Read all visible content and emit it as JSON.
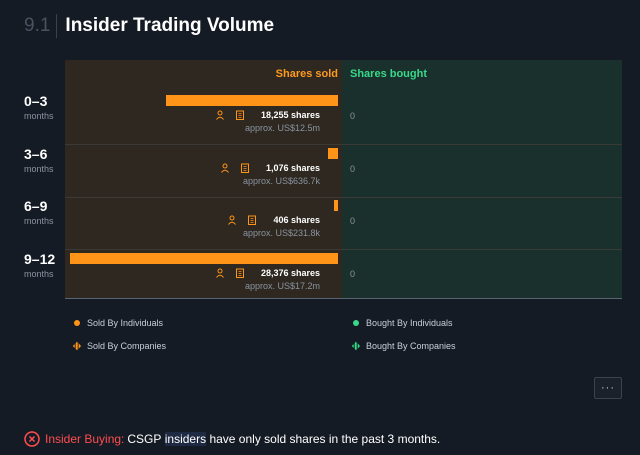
{
  "section": {
    "number": "9.1",
    "title": "Insider Trading Volume"
  },
  "columns": {
    "sold": "Shares sold",
    "bought": "Shares bought"
  },
  "colors": {
    "sold": "#ff9419",
    "bought": "#38d98a",
    "alert": "#ff4d4f"
  },
  "chart_data": {
    "type": "bar",
    "categories": [
      "0–3 months",
      "3–6 months",
      "6–9 months",
      "9–12 months"
    ],
    "series": [
      {
        "name": "Shares sold",
        "values": [
          18255,
          1076,
          406,
          28376
        ]
      },
      {
        "name": "Shares bought",
        "values": [
          0,
          0,
          0,
          0
        ]
      }
    ]
  },
  "rows": [
    {
      "range": "0–3",
      "unit": "months",
      "shares": "18,255 shares",
      "approx": "approx. US$12.5m",
      "bought": "0"
    },
    {
      "range": "3–6",
      "unit": "months",
      "shares": "1,076 shares",
      "approx": "approx. US$636.7k",
      "bought": "0"
    },
    {
      "range": "6–9",
      "unit": "months",
      "shares": "406 shares",
      "approx": "approx. US$231.8k",
      "bought": "0"
    },
    {
      "range": "9–12",
      "unit": "months",
      "shares": "28,376 shares",
      "approx": "approx. US$17.2m",
      "bought": "0"
    }
  ],
  "legend": {
    "sold_individuals": "Sold By Individuals",
    "sold_companies": "Sold By Companies",
    "bought_individuals": "Bought By Individuals",
    "bought_companies": "Bought By Companies"
  },
  "more_button": "···",
  "alert": {
    "label": "Insider Buying:",
    "ticker": "CSGP",
    "highlight": "insiders",
    "text": "have only sold shares in the past 3 months."
  },
  "icons": {
    "person": "person-icon",
    "building": "building-icon",
    "alert": "x-circle-icon"
  }
}
